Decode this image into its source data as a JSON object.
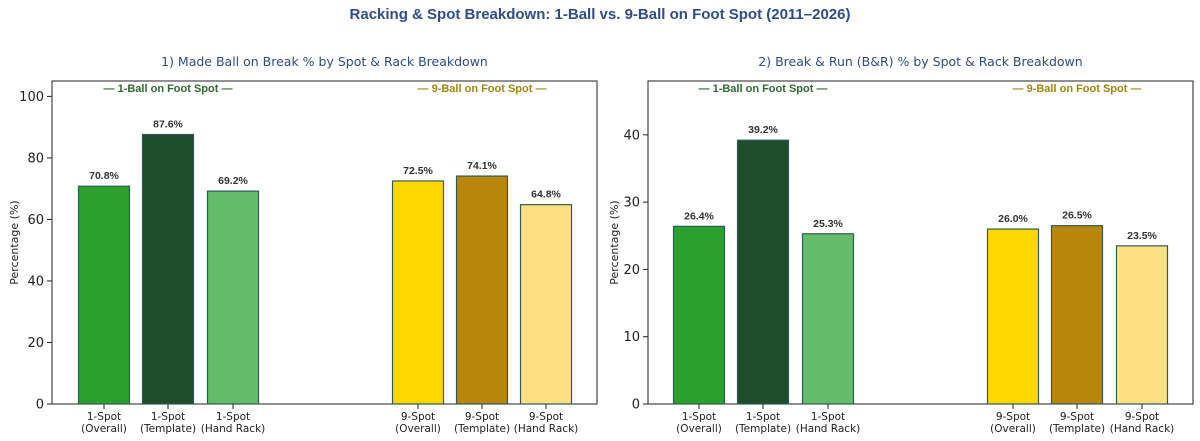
{
  "main_title": "Racking & Spot Breakdown: 1-Ball vs. 9-Ball on Foot Spot (2011–2026)",
  "colors": {
    "title": "#2e4d8a",
    "green_group": "#2e6b2e",
    "gold_group": "#a68410",
    "bar_edge": "#2d5a5a"
  },
  "chart_data": [
    {
      "type": "bar",
      "title": "1) Made Ball on Break % by Spot & Rack Breakdown",
      "ylabel": "Percentage (%)",
      "ylim": [
        0,
        105
      ],
      "yticks": [
        0,
        20,
        40,
        60,
        80,
        100
      ],
      "grid": false,
      "group_labels": [
        "— 1-Ball on Foot Spot —",
        "— 9-Ball on Foot Spot —"
      ],
      "categories": [
        "1-Spot\n(Overall)",
        "1-Spot\n(Template)",
        "1-Spot\n(Hand Rack)",
        "9-Spot\n(Overall)",
        "9-Spot\n(Template)",
        "9-Spot\n(Hand Rack)"
      ],
      "values": [
        70.8,
        87.6,
        69.2,
        72.5,
        74.1,
        64.8
      ],
      "value_labels": [
        "70.8%",
        "87.6%",
        "69.2%",
        "72.5%",
        "74.1%",
        "64.8%"
      ],
      "bar_colors": [
        "#2ca02c",
        "#1e4d2b",
        "#66bb6a",
        "#ffd700",
        "#b8860b",
        "#ffe082"
      ]
    },
    {
      "type": "bar",
      "title": "2) Break & Run (B&R) % by Spot & Rack Breakdown",
      "ylabel": "Percentage (%)",
      "ylim": [
        0,
        48
      ],
      "yticks": [
        0,
        10,
        20,
        30,
        40
      ],
      "grid": false,
      "group_labels": [
        "— 1-Ball on Foot Spot —",
        "— 9-Ball on Foot Spot —"
      ],
      "categories": [
        "1-Spot\n(Overall)",
        "1-Spot\n(Template)",
        "1-Spot\n(Hand Rack)",
        "9-Spot\n(Overall)",
        "9-Spot\n(Template)",
        "9-Spot\n(Hand Rack)"
      ],
      "values": [
        26.4,
        39.2,
        25.3,
        26.0,
        26.5,
        23.5
      ],
      "value_labels": [
        "26.4%",
        "39.2%",
        "25.3%",
        "26.0%",
        "26.5%",
        "23.5%"
      ],
      "bar_colors": [
        "#2ca02c",
        "#1e4d2b",
        "#66bb6a",
        "#ffd700",
        "#b8860b",
        "#ffe082"
      ]
    }
  ]
}
